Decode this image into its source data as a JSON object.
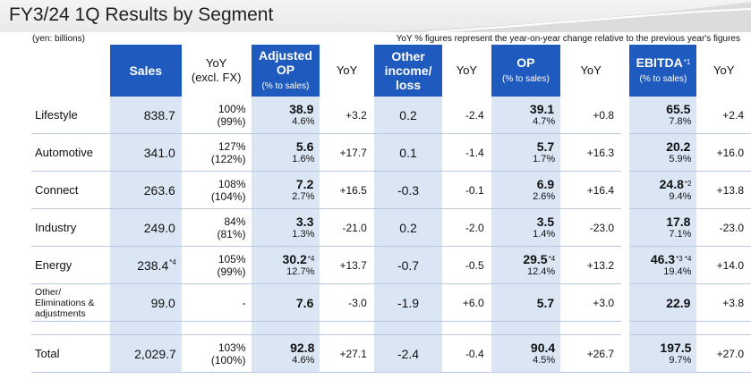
{
  "title": "FY3/24 1Q Results by Segment",
  "unit_note": "(yen: billions)",
  "yoy_note": "YoY % figures represent the year-on-year change relative to the previous year's figures",
  "headers": {
    "sales": "Sales",
    "yoy_excl_fx": "YoY",
    "yoy_excl_fx_sub": "(excl. FX)",
    "adj_op": "Adjusted",
    "adj_op2": "OP",
    "adj_op_sub": "(% to sales)",
    "yoy": "YoY",
    "other_income": "Other",
    "other_income2": "income/",
    "other_income3": "loss",
    "op": "OP",
    "op_sub": "(% to sales)",
    "ebitda": "EBITDA",
    "ebitda_mark": "*1",
    "ebitda_sub": "(% to sales)"
  },
  "rows": [
    {
      "label": "Lifestyle",
      "sales": "838.7",
      "sales_mark": "",
      "yoy_fx": "100%",
      "yoy_fx_paren": "(99%)",
      "adj_op": "38.9",
      "adj_op_mark": "",
      "adj_op_pct": "4.6%",
      "adj_op_yoy": "+3.2",
      "other": "0.2",
      "other_yoy": "-2.4",
      "op": "39.1",
      "op_mark": "",
      "op_pct": "4.7%",
      "op_yoy": "+0.8",
      "ebitda": "65.5",
      "ebitda_mark": "",
      "ebitda_pct": "7.8%",
      "ebitda_yoy": "+2.4"
    },
    {
      "label": "Automotive",
      "sales": "341.0",
      "sales_mark": "",
      "yoy_fx": "127%",
      "yoy_fx_paren": "(122%)",
      "adj_op": "5.6",
      "adj_op_mark": "",
      "adj_op_pct": "1.6%",
      "adj_op_yoy": "+17.7",
      "other": "0.1",
      "other_yoy": "-1.4",
      "op": "5.7",
      "op_mark": "",
      "op_pct": "1.7%",
      "op_yoy": "+16.3",
      "ebitda": "20.2",
      "ebitda_mark": "",
      "ebitda_pct": "5.9%",
      "ebitda_yoy": "+16.0"
    },
    {
      "label": "Connect",
      "sales": "263.6",
      "sales_mark": "",
      "yoy_fx": "108%",
      "yoy_fx_paren": "(104%)",
      "adj_op": "7.2",
      "adj_op_mark": "",
      "adj_op_pct": "2.7%",
      "adj_op_yoy": "+16.5",
      "other": "-0.3",
      "other_yoy": "-0.1",
      "op": "6.9",
      "op_mark": "",
      "op_pct": "2.6%",
      "op_yoy": "+16.4",
      "ebitda": "24.8",
      "ebitda_mark": "*2",
      "ebitda_pct": "9.4%",
      "ebitda_yoy": "+13.8"
    },
    {
      "label": "Industry",
      "sales": "249.0",
      "sales_mark": "",
      "yoy_fx": "84%",
      "yoy_fx_paren": "(81%)",
      "adj_op": "3.3",
      "adj_op_mark": "",
      "adj_op_pct": "1.3%",
      "adj_op_yoy": "-21.0",
      "other": "0.2",
      "other_yoy": "-2.0",
      "op": "3.5",
      "op_mark": "",
      "op_pct": "1.4%",
      "op_yoy": "-23.0",
      "ebitda": "17.8",
      "ebitda_mark": "",
      "ebitda_pct": "7.1%",
      "ebitda_yoy": "-23.0"
    },
    {
      "label": "Energy",
      "sales": "238.4",
      "sales_mark": "*4",
      "yoy_fx": "105%",
      "yoy_fx_paren": "(99%)",
      "adj_op": "30.2",
      "adj_op_mark": "*4",
      "adj_op_pct": "12.7%",
      "adj_op_yoy": "+13.7",
      "other": "-0.7",
      "other_yoy": "-0.5",
      "op": "29.5",
      "op_mark": "*4",
      "op_pct": "12.4%",
      "op_yoy": "+13.2",
      "ebitda": "46.3",
      "ebitda_mark": "*3 *4",
      "ebitda_pct": "19.4%",
      "ebitda_yoy": "+14.0"
    },
    {
      "label": "Other/ Eliminations & adjustments",
      "sales": "99.0",
      "sales_mark": "",
      "yoy_fx": "-",
      "yoy_fx_paren": "",
      "adj_op": "7.6",
      "adj_op_mark": "",
      "adj_op_pct": "",
      "adj_op_yoy": "-3.0",
      "other": "-1.9",
      "other_yoy": "+6.0",
      "op": "5.7",
      "op_mark": "",
      "op_pct": "",
      "op_yoy": "+3.0",
      "ebitda": "22.9",
      "ebitda_mark": "",
      "ebitda_pct": "",
      "ebitda_yoy": "+3.8"
    }
  ],
  "total": {
    "label": "Total",
    "sales": "2,029.7",
    "yoy_fx": "103%",
    "yoy_fx_paren": "(100%)",
    "adj_op": "92.8",
    "adj_op_pct": "4.6%",
    "adj_op_yoy": "+27.1",
    "other": "-2.4",
    "other_yoy": "-0.4",
    "op": "90.4",
    "op_pct": "4.5%",
    "op_yoy": "+26.7",
    "ebitda": "197.5",
    "ebitda_pct": "9.7%",
    "ebitda_yoy": "+27.0"
  },
  "colors": {
    "header_blue": "#1f5bbf",
    "highlight": "#dbe6f5"
  }
}
